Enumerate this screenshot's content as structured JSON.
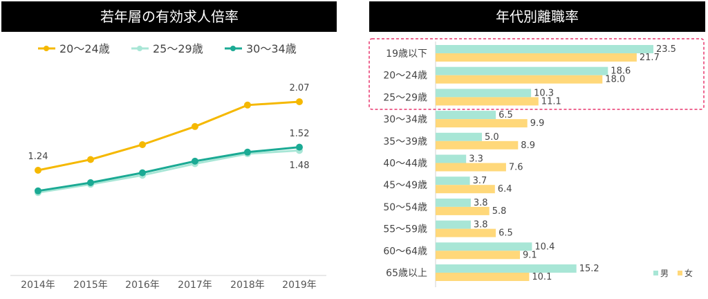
{
  "chart_data": [
    {
      "type": "line",
      "title": "若年層の有効求人倍率",
      "x": [
        "2014年",
        "2015年",
        "2016年",
        "2017年",
        "2018年",
        "2019年"
      ],
      "series": [
        {
          "name": "20～24歳",
          "color": "#F5B800",
          "values": [
            1.24,
            1.37,
            1.55,
            1.77,
            2.03,
            2.07
          ]
        },
        {
          "name": "25～29歳",
          "color": "#A8E6D6",
          "values": [
            0.97,
            1.07,
            1.18,
            1.32,
            1.44,
            1.48
          ]
        },
        {
          "name": "30～34歳",
          "color": "#1BAA94",
          "values": [
            0.99,
            1.09,
            1.21,
            1.35,
            1.46,
            1.52
          ]
        }
      ],
      "data_labels": {
        "s0_first": "1.24",
        "s0_last": "2.07",
        "s2_last": "1.52",
        "s1_last": "1.48"
      },
      "ylim": [
        0.6,
        2.6
      ],
      "grid": false,
      "legend": "top"
    },
    {
      "type": "bar",
      "orientation": "horizontal",
      "title": "年代別離職率",
      "categories": [
        "19歳以下",
        "20～24歳",
        "25～29歳",
        "30～34歳",
        "35～39歳",
        "40～44歳",
        "45～49歳",
        "50～54歳",
        "55～59歳",
        "60～64歳",
        "65歳以上"
      ],
      "series": [
        {
          "name": "男",
          "color": "#A8E6D6",
          "values": [
            23.5,
            18.6,
            10.3,
            6.5,
            5.0,
            3.3,
            3.7,
            3.8,
            3.8,
            10.4,
            15.2
          ]
        },
        {
          "name": "女",
          "color": "#FFD87A",
          "values": [
            21.7,
            18.0,
            11.1,
            9.9,
            8.9,
            7.6,
            6.4,
            5.8,
            6.5,
            9.1,
            10.1
          ]
        }
      ],
      "value_labels": [
        [
          "23.5",
          "18.6",
          "10.3",
          "6.5",
          "5.0",
          "3.3",
          "3.7",
          "3.8",
          "3.8",
          "10.4",
          "15.2"
        ],
        [
          "21.7",
          "18.0",
          "11.1",
          "9.9",
          "8.9",
          "7.6",
          "6.4",
          "5.8",
          "6.5",
          "9.1",
          "10.1"
        ]
      ],
      "highlight_color": "#E8336B",
      "legend": "bottom-right"
    }
  ]
}
